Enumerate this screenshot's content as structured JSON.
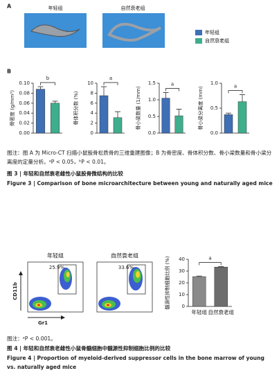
{
  "figure3": {
    "panel_a_label": "A",
    "group_labels": [
      "年轻组",
      "自然衰老组"
    ],
    "legend": [
      "年轻组",
      "自然衰老组"
    ],
    "panel_b_label": "B",
    "note": "图注：图 A 为 Micro-CT 扫描小鼠股骨松质骨的三维重建图像；B 为骨密度、骨体积分数、骨小梁数量和骨小梁分离度的定量分析。ᵃP < 0.05，ᵇP < 0.01。",
    "caption_zh": "图 3 | 年轻和自然衰老雌性小鼠股骨微结构的比较",
    "caption_en": "Figure 3 | Comparison of bone microarchitecture between young and naturally aged mice"
  },
  "figure4": {
    "group_labels": [
      "年轻组",
      "自然衰老组"
    ],
    "gate_percentages": [
      "25.9%",
      "33.6%"
    ],
    "y_axis_label": "CD11b",
    "x_axis_label": "Gr1",
    "note": "图注：ᵃP < 0.001。",
    "caption_zh": "图 4 | 年轻和自然衰老雌性小鼠骨髓细胞中髓源性抑制细胞比例的比较",
    "caption_en": "Figure 4 | Proportion of myeloid-derived suppressor cells in the bone marrow of young vs. naturally aged mice"
  },
  "chart_data": [
    {
      "type": "bar",
      "ylabel": "骨密度 (g/mm³)",
      "values": [
        0.088,
        0.06
      ],
      "errors": [
        0.005,
        0.004
      ],
      "colors": [
        "#3f6fb5",
        "#3fae8c"
      ],
      "ylim": [
        0,
        0.1
      ],
      "yticks": [
        {
          "value": 0,
          "label": "0.00"
        },
        0.02,
        0.04,
        0.06,
        0.08,
        {
          "value": 0.1,
          "label": "0.10"
        }
      ],
      "annotation": "b"
    },
    {
      "type": "bar",
      "ylabel": "骨体积分数 (%)",
      "values": [
        7.5,
        3.1
      ],
      "errors": [
        1.8,
        1.2
      ],
      "colors": [
        "#3f6fb5",
        "#3fae8c"
      ],
      "ylim": [
        0,
        10
      ],
      "yticks": [
        0,
        2,
        4,
        6,
        8,
        10
      ],
      "annotation": "a"
    },
    {
      "type": "bar",
      "ylabel": "骨小梁数量 (1/mm)",
      "values": [
        1.05,
        0.52
      ],
      "errors": [
        0.17,
        0.2
      ],
      "colors": [
        "#3f6fb5",
        "#3fae8c"
      ],
      "ylim": [
        0,
        1.5
      ],
      "yticks": [
        {
          "value": 0,
          "label": "0.0"
        },
        0.5,
        {
          "value": 1,
          "label": "1.0"
        },
        1.5
      ],
      "annotation": "a"
    },
    {
      "type": "bar",
      "ylabel": "骨小梁分离度 (mm)",
      "values": [
        0.37,
        0.63
      ],
      "errors": [
        0.03,
        0.14
      ],
      "colors": [
        "#3f6fb5",
        "#3fae8c"
      ],
      "ylim": [
        0,
        1
      ],
      "yticks": [
        {
          "value": 0,
          "label": "0.0"
        },
        0.5,
        {
          "value": 1,
          "label": "1.0"
        }
      ],
      "annotation": "a"
    },
    {
      "type": "bar",
      "ylabel": "髓源性抑制细胞比例 (%)",
      "categories": [
        "年轻组",
        "自然衰老组"
      ],
      "values": [
        25.3,
        33.4
      ],
      "errors": [
        0.5,
        0.4
      ],
      "colors": [
        "#8a8a8a",
        "#6d6d6d"
      ],
      "ylim": [
        0,
        40
      ],
      "yticks": [
        0,
        10,
        20,
        30,
        40
      ],
      "annotation": "a"
    }
  ]
}
